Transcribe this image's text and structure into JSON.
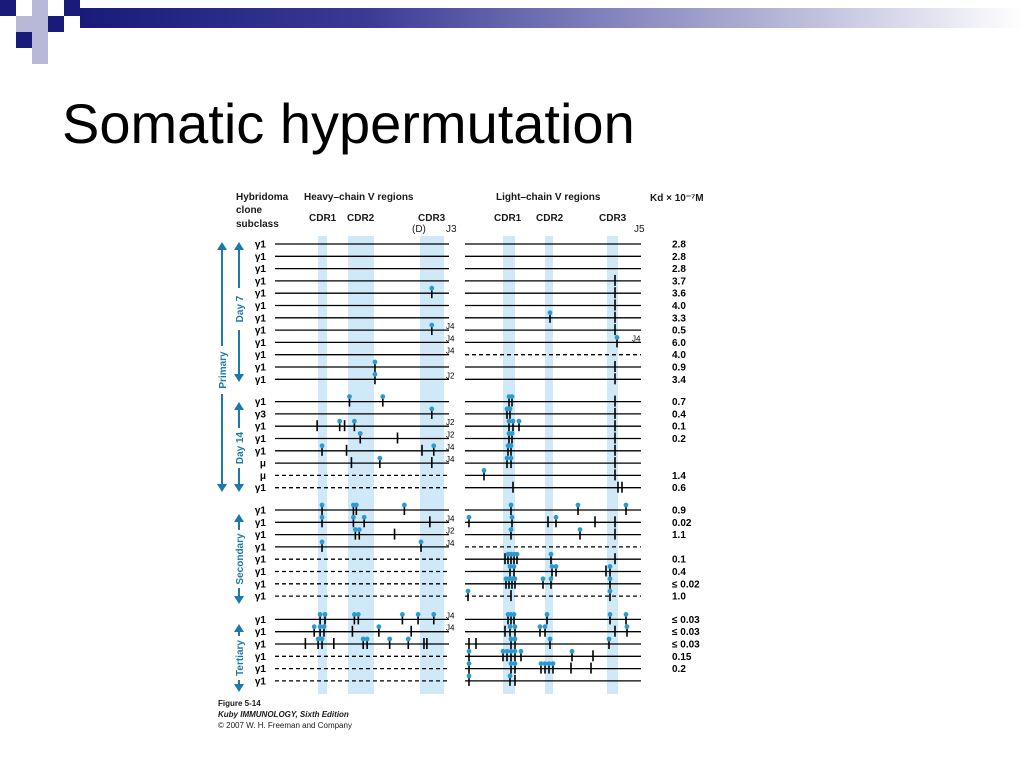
{
  "slide": {
    "title": "Somatic hypermutation"
  },
  "figure": {
    "header": {
      "hybridoma": "Hybridoma",
      "clone": "clone",
      "subclass": "subclass",
      "heavy": "Heavy–chain V regions",
      "light": "Light–chain V regions",
      "kd": "Kd × 10⁻⁷M",
      "cdr1": "CDR1",
      "cdr2": "CDR2",
      "cdr3": "CDR3",
      "d": "(D)",
      "j3": "J3",
      "j5": "J5"
    },
    "groups": {
      "primary": "Primary",
      "day7": "Day 7",
      "day14": "Day 14",
      "secondary": "Secondary",
      "tertiary": "Tertiary"
    },
    "caption": {
      "line1": "Figure 5-14",
      "line2": "Kuby IMMUNOLOGY, Sixth Edition",
      "line3": "© 2007 W. H. Freeman and Company"
    },
    "rows": [
      {
        "cls": "γ1",
        "kd": "2.8",
        "hd": false,
        "ld": false,
        "hj": "",
        "lj": "",
        "hm": [],
        "lm": []
      },
      {
        "cls": "γ1",
        "kd": "2.8",
        "hd": false,
        "ld": false,
        "hj": "",
        "lj": "",
        "hm": [],
        "lm": []
      },
      {
        "cls": "γ1",
        "kd": "2.8",
        "hd": false,
        "ld": false,
        "hj": "",
        "lj": "",
        "hm": [],
        "lm": []
      },
      {
        "cls": "γ1",
        "kd": "3.7",
        "hd": false,
        "ld": false,
        "hj": "",
        "lj": "",
        "hm": [],
        "lm": [
          [
            150,
            "t"
          ]
        ]
      },
      {
        "cls": "γ1",
        "kd": "3.6",
        "hd": false,
        "ld": false,
        "hj": "",
        "lj": "",
        "hm": [
          [
            220,
            "r"
          ]
        ],
        "lm": [
          [
            150,
            "t"
          ]
        ]
      },
      {
        "cls": "γ1",
        "kd": "4.0",
        "hd": false,
        "ld": false,
        "hj": "",
        "lj": "",
        "hm": [],
        "lm": [
          [
            150,
            "t"
          ]
        ]
      },
      {
        "cls": "γ1",
        "kd": "3.3",
        "hd": false,
        "ld": false,
        "hj": "",
        "lj": "",
        "hm": [],
        "lm": [
          [
            85,
            "r"
          ],
          [
            150,
            "t"
          ]
        ]
      },
      {
        "cls": "γ1",
        "kd": "0.5",
        "hd": false,
        "ld": false,
        "hj": "J4",
        "lj": "",
        "hm": [
          [
            220,
            "r"
          ]
        ],
        "lm": [
          [
            150,
            "t"
          ]
        ]
      },
      {
        "cls": "γ1",
        "kd": "6.0",
        "hd": false,
        "ld": false,
        "hj": "J4",
        "lj": "J4",
        "hm": [],
        "lm": [
          [
            152,
            "r"
          ]
        ]
      },
      {
        "cls": "γ1",
        "kd": "4.0",
        "hd": false,
        "ld": true,
        "hj": "J4",
        "lj": "",
        "hm": [],
        "lm": []
      },
      {
        "cls": "γ1",
        "kd": "0.9",
        "hd": false,
        "ld": false,
        "hj": "",
        "lj": "",
        "hm": [
          [
            162,
            "r"
          ]
        ],
        "lm": [
          [
            150,
            "t"
          ]
        ]
      },
      {
        "cls": "γ1",
        "kd": "3.4",
        "hd": false,
        "ld": false,
        "hj": "J2",
        "lj": "",
        "hm": [
          [
            162,
            "r"
          ]
        ],
        "lm": [
          [
            150,
            "t"
          ]
        ]
      },
      {
        "cls": "γ1",
        "kd": "0.7",
        "hd": false,
        "ld": false,
        "hj": "",
        "lj": "",
        "hm": [
          [
            136,
            "r"
          ],
          [
            170,
            "r"
          ]
        ],
        "lm": [
          [
            44,
            "r"
          ],
          [
            47,
            "r"
          ],
          [
            150,
            "t"
          ]
        ]
      },
      {
        "cls": "γ3",
        "kd": "0.4",
        "hd": false,
        "ld": false,
        "hj": "",
        "lj": "",
        "hm": [
          [
            220,
            "r"
          ]
        ],
        "lm": [
          [
            42,
            "r"
          ],
          [
            45,
            "r"
          ],
          [
            150,
            "t"
          ]
        ]
      },
      {
        "cls": "γ1",
        "kd": "0.1",
        "hd": false,
        "ld": false,
        "hj": "J2",
        "lj": "",
        "hm": [
          [
            103,
            "t"
          ],
          [
            126,
            "r"
          ],
          [
            131,
            "t"
          ],
          [
            141,
            "r"
          ]
        ],
        "lm": [
          [
            44,
            "r"
          ],
          [
            48,
            "r"
          ],
          [
            54,
            "r"
          ],
          [
            150,
            "t"
          ]
        ]
      },
      {
        "cls": "γ1",
        "kd": "0.2",
        "hd": false,
        "ld": false,
        "hj": "J2",
        "lj": "",
        "hm": [
          [
            147,
            "r"
          ],
          [
            185,
            "t"
          ]
        ],
        "lm": [
          [
            44,
            "r"
          ],
          [
            47,
            "r"
          ],
          [
            150,
            "t"
          ]
        ]
      },
      {
        "cls": "γ1",
        "kd": "",
        "hd": false,
        "ld": false,
        "hj": "J4",
        "lj": "",
        "hm": [
          [
            108,
            "r"
          ],
          [
            133,
            "t"
          ],
          [
            210,
            "t"
          ],
          [
            222,
            "r"
          ]
        ],
        "lm": [
          [
            43,
            "r"
          ],
          [
            46,
            "r"
          ],
          [
            150,
            "t"
          ]
        ]
      },
      {
        "cls": "μ",
        "kd": "",
        "hd": false,
        "ld": false,
        "hj": "J4",
        "lj": "",
        "hm": [
          [
            138,
            "t"
          ],
          [
            167,
            "r"
          ],
          [
            220,
            "t"
          ]
        ],
        "lm": [
          [
            42,
            "r"
          ],
          [
            46,
            "r"
          ],
          [
            150,
            "t"
          ]
        ]
      },
      {
        "cls": "μ",
        "kd": "1.4",
        "hd": true,
        "ld": false,
        "hj": "",
        "lj": "",
        "hm": [],
        "lm": [
          [
            19,
            "r"
          ],
          [
            150,
            "t"
          ]
        ]
      },
      {
        "cls": "γ1",
        "kd": "0.6",
        "hd": true,
        "ld": false,
        "hj": "",
        "lj": "",
        "hm": [],
        "lm": [
          [
            48,
            "t"
          ],
          [
            153,
            "t"
          ],
          [
            157,
            "t"
          ]
        ]
      },
      {
        "cls": "γ1",
        "kd": "0.9",
        "hd": false,
        "ld": false,
        "hj": "",
        "lj": "",
        "hm": [
          [
            108,
            "r"
          ],
          [
            140,
            "r"
          ],
          [
            143,
            "r"
          ],
          [
            192,
            "r"
          ]
        ],
        "lm": [
          [
            46,
            "r"
          ],
          [
            113,
            "r"
          ],
          [
            161,
            "r"
          ]
        ]
      },
      {
        "cls": "γ1",
        "kd": "0.02",
        "hd": false,
        "ld": false,
        "hj": "J4",
        "lj": "",
        "hm": [
          [
            108,
            "r"
          ],
          [
            140,
            "r"
          ],
          [
            151,
            "r"
          ],
          [
            218,
            "t"
          ]
        ],
        "lm": [
          [
            4,
            "r"
          ],
          [
            47,
            "r"
          ],
          [
            83,
            "t"
          ],
          [
            91,
            "r"
          ],
          [
            130,
            "t"
          ],
          [
            150,
            "t"
          ]
        ]
      },
      {
        "cls": "γ1",
        "kd": "1.1",
        "hd": false,
        "ld": false,
        "hj": "J2",
        "lj": "",
        "hm": [
          [
            142,
            "r"
          ],
          [
            146,
            "r"
          ],
          [
            182,
            "t"
          ]
        ],
        "lm": [
          [
            46,
            "r"
          ],
          [
            115,
            "r"
          ],
          [
            150,
            "t"
          ]
        ]
      },
      {
        "cls": "γ1",
        "kd": "",
        "hd": false,
        "ld": true,
        "hj": "J4",
        "lj": "",
        "hm": [
          [
            108,
            "r"
          ],
          [
            209,
            "r"
          ]
        ],
        "lm": []
      },
      {
        "cls": "γ1",
        "kd": "0.1",
        "hd": true,
        "ld": false,
        "hj": "",
        "lj": "",
        "hm": [],
        "lm": [
          [
            40,
            "t"
          ],
          [
            43,
            "r"
          ],
          [
            46,
            "r"
          ],
          [
            49,
            "r"
          ],
          [
            52,
            "r"
          ],
          [
            86,
            "r"
          ],
          [
            150,
            "t"
          ]
        ]
      },
      {
        "cls": "γ1",
        "kd": "0.4",
        "hd": true,
        "ld": false,
        "hj": "",
        "lj": "",
        "hm": [],
        "lm": [
          [
            45,
            "r"
          ],
          [
            49,
            "r"
          ],
          [
            87,
            "r"
          ],
          [
            91,
            "r"
          ],
          [
            141,
            "t"
          ],
          [
            145,
            "r"
          ]
        ]
      },
      {
        "cls": "γ1",
        "kd": "≤ 0.02",
        "hd": true,
        "ld": false,
        "hj": "",
        "lj": "",
        "hm": [],
        "lm": [
          [
            41,
            "r"
          ],
          [
            44,
            "r"
          ],
          [
            47,
            "r"
          ],
          [
            50,
            "r"
          ],
          [
            78,
            "r"
          ],
          [
            86,
            "r"
          ],
          [
            145,
            "r"
          ]
        ]
      },
      {
        "cls": "γ1",
        "kd": "1.0",
        "hd": true,
        "ld": true,
        "hj": "",
        "lj": "",
        "hm": [],
        "lm": [
          [
            3,
            "r"
          ],
          [
            46,
            "t"
          ],
          [
            145,
            "r"
          ]
        ]
      },
      {
        "cls": "γ1",
        "kd": "≤ 0.03",
        "hd": false,
        "ld": false,
        "hj": "J4",
        "lj": "",
        "hm": [
          [
            106,
            "r"
          ],
          [
            111,
            "r"
          ],
          [
            141,
            "r"
          ],
          [
            145,
            "r"
          ],
          [
            190,
            "r"
          ],
          [
            206,
            "r"
          ],
          [
            222,
            "r"
          ]
        ],
        "lm": [
          [
            43,
            "r"
          ],
          [
            46,
            "r"
          ],
          [
            49,
            "r"
          ],
          [
            82,
            "r"
          ],
          [
            145,
            "r"
          ],
          [
            161,
            "r"
          ]
        ]
      },
      {
        "cls": "γ1",
        "kd": "≤ 0.03",
        "hd": false,
        "ld": false,
        "hj": "J4",
        "lj": "",
        "hm": [
          [
            100,
            "r"
          ],
          [
            106,
            "r"
          ],
          [
            110,
            "r"
          ],
          [
            139,
            "t"
          ],
          [
            166,
            "r"
          ],
          [
            199,
            "t"
          ]
        ],
        "lm": [
          [
            40,
            "t"
          ],
          [
            45,
            "r"
          ],
          [
            50,
            "r"
          ],
          [
            75,
            "r"
          ],
          [
            80,
            "r"
          ],
          [
            150,
            "t"
          ],
          [
            162,
            "r"
          ]
        ]
      },
      {
        "cls": "γ1",
        "kd": "≤ 0.03",
        "hd": false,
        "ld": false,
        "hj": "",
        "lj": "",
        "hm": [
          [
            91,
            "t"
          ],
          [
            104,
            "r"
          ],
          [
            108,
            "r"
          ],
          [
            120,
            "t"
          ],
          [
            150,
            "r"
          ],
          [
            154,
            "r"
          ],
          [
            177,
            "r"
          ],
          [
            196,
            "r"
          ],
          [
            212,
            "t"
          ],
          [
            215,
            "t"
          ]
        ],
        "lm": [
          [
            4,
            "t"
          ],
          [
            11,
            "t"
          ],
          [
            46,
            "r"
          ],
          [
            50,
            "r"
          ],
          [
            85,
            "r"
          ],
          [
            144,
            "r"
          ]
        ]
      },
      {
        "cls": "γ1",
        "kd": "0.15",
        "hd": true,
        "ld": false,
        "hj": "",
        "lj": "",
        "hm": [],
        "lm": [
          [
            4,
            "r"
          ],
          [
            38,
            "r"
          ],
          [
            42,
            "r"
          ],
          [
            46,
            "r"
          ],
          [
            50,
            "r"
          ],
          [
            56,
            "r"
          ],
          [
            107,
            "r"
          ],
          [
            128,
            "t"
          ]
        ]
      },
      {
        "cls": "γ1",
        "kd": "0.2",
        "hd": true,
        "ld": false,
        "hj": "",
        "lj": "",
        "hm": [],
        "lm": [
          [
            4,
            "r"
          ],
          [
            46,
            "r"
          ],
          [
            50,
            "r"
          ],
          [
            76,
            "r"
          ],
          [
            80,
            "r"
          ],
          [
            84,
            "r"
          ],
          [
            88,
            "r"
          ],
          [
            106,
            "t"
          ],
          [
            126,
            "t"
          ]
        ]
      },
      {
        "cls": "γ1",
        "kd": "",
        "hd": true,
        "ld": false,
        "hj": "",
        "lj": "",
        "hm": [],
        "lm": [
          [
            4,
            "r"
          ],
          [
            45,
            "r"
          ],
          [
            50,
            "t"
          ]
        ]
      }
    ]
  }
}
